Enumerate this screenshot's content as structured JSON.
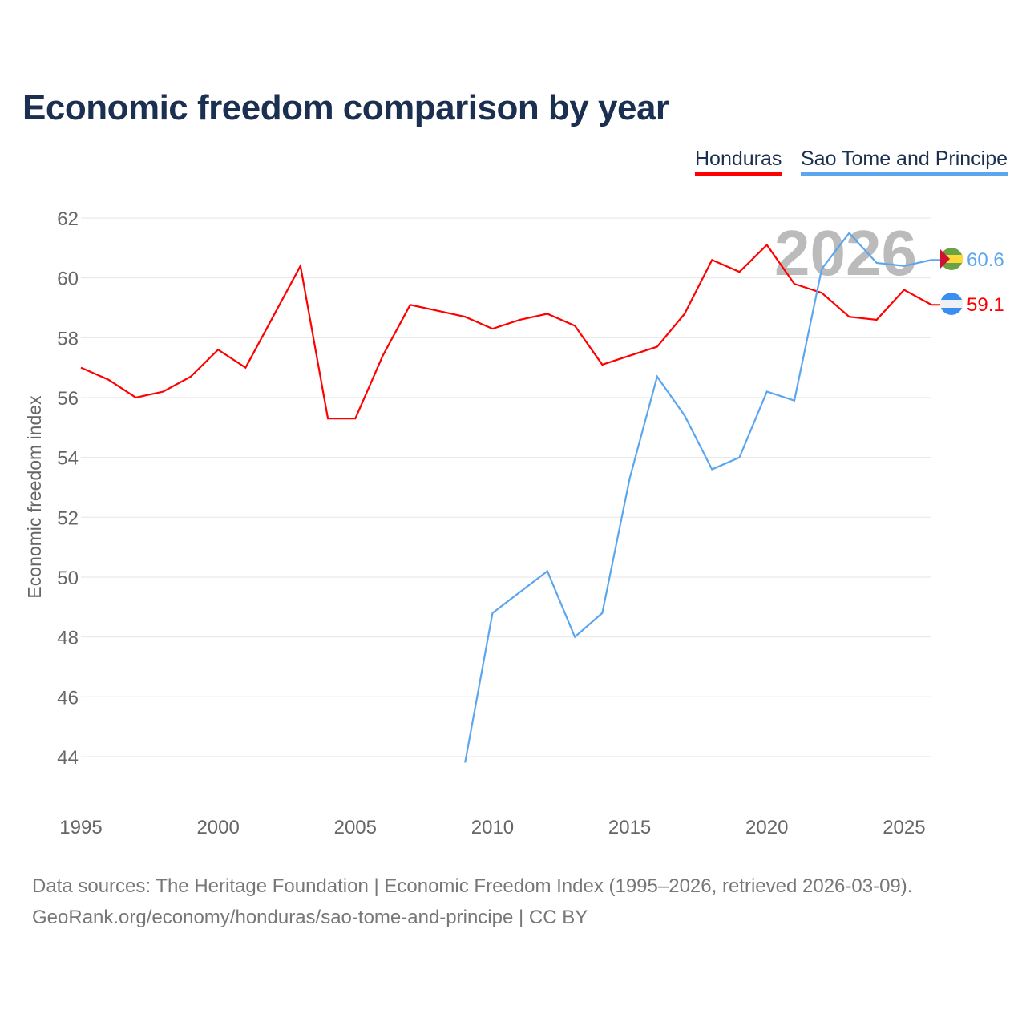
{
  "chart_data": {
    "type": "line",
    "title": "Economic freedom comparison by year",
    "ylabel": "Economic freedom index",
    "xlabel": "",
    "ylim": [
      43,
      62.5
    ],
    "xlim": [
      1995,
      2026
    ],
    "yticks": [
      44,
      46,
      48,
      50,
      52,
      54,
      56,
      58,
      60,
      62
    ],
    "xticks": [
      1995,
      2000,
      2005,
      2010,
      2015,
      2020,
      2025
    ],
    "current_year_label": "2026",
    "legend_position": "top-right",
    "series": [
      {
        "name": "Honduras",
        "color": "#ff0000",
        "end_label": "59.1",
        "x": [
          1995,
          1996,
          1997,
          1998,
          1999,
          2000,
          2001,
          2002,
          2003,
          2004,
          2005,
          2006,
          2007,
          2008,
          2009,
          2010,
          2011,
          2012,
          2013,
          2014,
          2015,
          2016,
          2017,
          2018,
          2019,
          2020,
          2021,
          2022,
          2023,
          2024,
          2025,
          2026
        ],
        "values": [
          57.0,
          56.6,
          56.0,
          56.2,
          56.7,
          57.6,
          57.0,
          58.7,
          60.4,
          55.3,
          55.3,
          57.4,
          59.1,
          58.9,
          58.7,
          58.3,
          58.6,
          58.8,
          58.4,
          57.1,
          57.4,
          57.7,
          58.8,
          60.6,
          60.2,
          61.1,
          59.8,
          59.5,
          58.7,
          58.6,
          59.6,
          59.1
        ]
      },
      {
        "name": "Sao Tome and Principe",
        "color": "#5ba6ee",
        "end_label": "60.6",
        "x": [
          2009,
          2010,
          2011,
          2012,
          2013,
          2014,
          2015,
          2016,
          2017,
          2018,
          2019,
          2020,
          2021,
          2022,
          2023,
          2024,
          2025,
          2026
        ],
        "values": [
          43.8,
          48.8,
          49.5,
          50.2,
          48.0,
          48.8,
          53.3,
          56.7,
          55.4,
          53.6,
          54.0,
          56.2,
          55.9,
          60.3,
          61.5,
          60.5,
          60.4,
          60.6
        ]
      }
    ]
  },
  "footer": {
    "line1": "Data sources: The Heritage Foundation | Economic Freedom Index (1995–2026, retrieved 2026-03-09).",
    "line2": "GeoRank.org/economy/honduras/sao-tome-and-principe | CC BY"
  }
}
